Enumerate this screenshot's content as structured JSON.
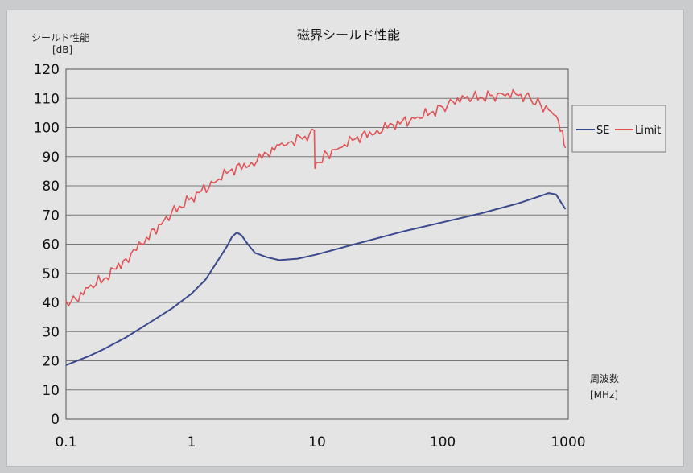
{
  "chart_data": {
    "type": "line",
    "title": "磁界シールド性能",
    "ylabel": "シールド性能",
    "yunit": "[dB]",
    "xlabel": "周波数",
    "xunit": "[MHz]",
    "xscale": "log",
    "xlim": [
      0.1,
      1000
    ],
    "ylim": [
      0,
      120
    ],
    "x_ticks": [
      "0.1",
      "1",
      "10",
      "100",
      "1000"
    ],
    "y_ticks": [
      "0",
      "10",
      "20",
      "30",
      "40",
      "50",
      "60",
      "70",
      "80",
      "90",
      "100",
      "110",
      "120"
    ],
    "grid": "horizontal",
    "legend_position": "right",
    "series": [
      {
        "name": "SE",
        "color": "#3a4a8c",
        "x": [
          0.1,
          0.15,
          0.2,
          0.3,
          0.5,
          0.7,
          1,
          1.3,
          1.6,
          1.9,
          2.1,
          2.3,
          2.5,
          2.8,
          3.2,
          4,
          5,
          7,
          10,
          20,
          50,
          100,
          200,
          400,
          600,
          700,
          800,
          950
        ],
        "y": [
          18.5,
          21.5,
          24,
          28,
          34,
          38,
          43,
          48,
          54,
          59,
          62.5,
          64,
          63,
          60,
          57,
          55.5,
          54.5,
          55,
          56.5,
          60,
          64.5,
          67.5,
          70.5,
          74,
          76.5,
          77.5,
          77,
          72
        ]
      },
      {
        "name": "Limit",
        "color": "#e05458",
        "x": [
          0.1,
          0.12,
          0.15,
          0.2,
          0.3,
          0.4,
          0.6,
          0.8,
          1,
          1.5,
          2,
          3,
          4,
          5,
          6,
          8,
          9.5,
          9.6,
          10,
          12,
          15,
          20,
          30,
          40,
          60,
          80,
          100,
          120,
          150,
          200,
          250,
          300,
          400,
          500,
          600,
          700,
          800,
          900,
          950
        ],
        "y": [
          40.5,
          41,
          45,
          48,
          55,
          60,
          68,
          73,
          76,
          81,
          85,
          88,
          91,
          94,
          95,
          97,
          99,
          86,
          88,
          91,
          93,
          96,
          99,
          101,
          103,
          105,
          107,
          109,
          110,
          110.5,
          111,
          111.5,
          111,
          110,
          108,
          106,
          104,
          99,
          93
        ]
      }
    ]
  }
}
